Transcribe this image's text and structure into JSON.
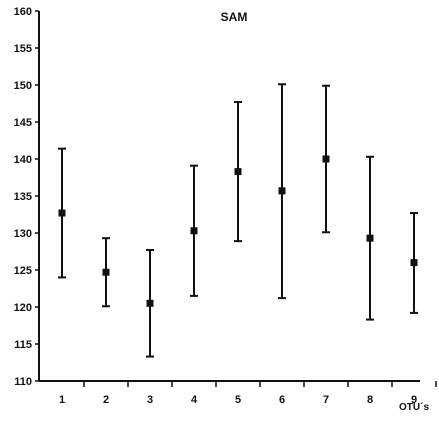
{
  "chart_data": {
    "type": "scatter",
    "subtype": "mean-with-error-bars",
    "title": "SAM",
    "xlabel": "OTU´s",
    "ylabel": "",
    "categories": [
      "1",
      "2",
      "3",
      "4",
      "5",
      "6",
      "7",
      "8",
      "9"
    ],
    "ylim": [
      110,
      160
    ],
    "yticks": [
      110,
      115,
      120,
      125,
      130,
      135,
      140,
      145,
      150,
      155,
      160
    ],
    "grid": false,
    "legend": "none",
    "series": [
      {
        "mean": [
          132.7,
          124.7,
          120.5,
          130.3,
          138.3,
          135.7,
          140.0,
          129.3,
          126.0
        ],
        "low": [
          124.0,
          120.1,
          113.3,
          121.5,
          128.9,
          121.2,
          130.1,
          118.3,
          119.2
        ],
        "high": [
          141.4,
          129.3,
          127.7,
          139.1,
          147.7,
          150.1,
          149.9,
          140.3,
          132.7
        ]
      }
    ],
    "colors": {
      "ink": "#111111",
      "background": "#ffffff"
    }
  }
}
